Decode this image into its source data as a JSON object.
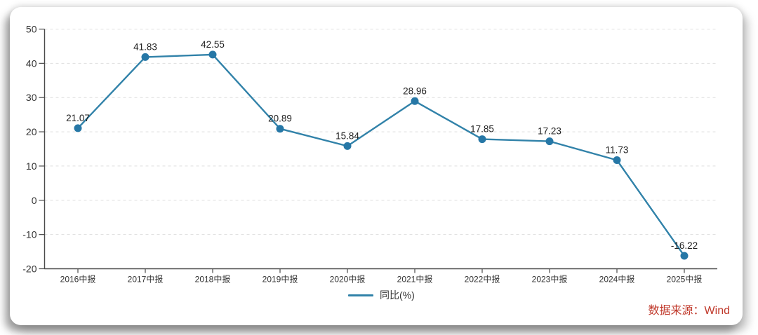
{
  "chart_data": {
    "type": "line",
    "title": "",
    "categories": [
      "2016中报",
      "2017中报",
      "2018中报",
      "2019中报",
      "2020中报",
      "2021中报",
      "2022中报",
      "2023中报",
      "2024中报",
      "2025中报"
    ],
    "series": [
      {
        "name": "同比(%)",
        "values": [
          21.07,
          41.83,
          42.55,
          20.89,
          15.84,
          28.96,
          17.85,
          17.23,
          11.73,
          -16.22
        ]
      }
    ],
    "xlabel": "",
    "ylabel": "",
    "ylim": [
      -20,
      50
    ],
    "yticks": [
      50,
      40,
      30,
      20,
      10,
      0,
      -10,
      -20
    ],
    "grid": "horizontal-dashed",
    "legend_position": "bottom-center",
    "line_color": "#3182a9",
    "marker_color": "#2677a6",
    "axis_color": "#4a4a4a",
    "grid_color": "#dedede",
    "value_label_color": "#1f1f1f",
    "tick_label_color": "#333333"
  },
  "legend": {
    "label": "同比(%)"
  },
  "source": {
    "label": "数据来源：Wind",
    "color": "#c0392b"
  }
}
